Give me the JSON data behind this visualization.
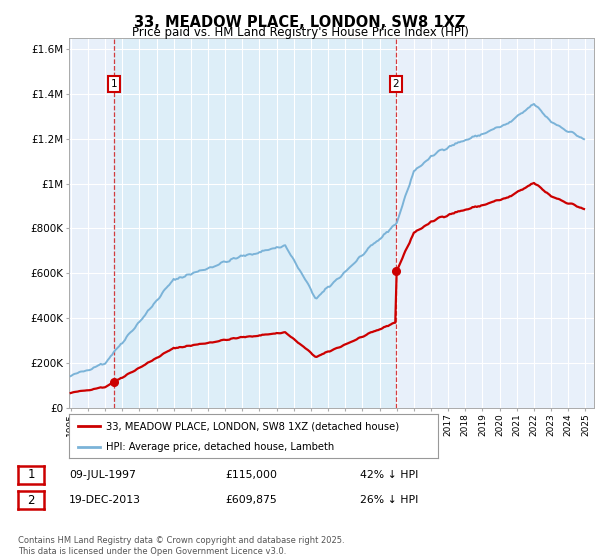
{
  "title": "33, MEADOW PLACE, LONDON, SW8 1XZ",
  "subtitle": "Price paid vs. HM Land Registry's House Price Index (HPI)",
  "red_label": "33, MEADOW PLACE, LONDON, SW8 1XZ (detached house)",
  "blue_label": "HPI: Average price, detached house, Lambeth",
  "annotation1_date": "09-JUL-1997",
  "annotation1_price": "£115,000",
  "annotation1_hpi": "42% ↓ HPI",
  "annotation2_date": "19-DEC-2013",
  "annotation2_price": "£609,875",
  "annotation2_hpi": "26% ↓ HPI",
  "purchase1_year": 1997.52,
  "purchase1_value": 115000,
  "purchase2_year": 2013.96,
  "purchase2_value": 609875,
  "copyright": "Contains HM Land Registry data © Crown copyright and database right 2025.\nThis data is licensed under the Open Government Licence v3.0.",
  "red_color": "#cc0000",
  "blue_color": "#7bb3d8",
  "bg_color": "#e8f0fa",
  "span_color": "#ddeaf7",
  "ylim_max": 1650000,
  "ylim_min": 0,
  "xlim_min": 1994.9,
  "xlim_max": 2025.5,
  "yticks": [
    0,
    200000,
    400000,
    600000,
    800000,
    1000000,
    1200000,
    1400000,
    1600000
  ],
  "ytick_labels": [
    "£0",
    "£200K",
    "£400K",
    "£600K",
    "£800K",
    "£1M",
    "£1.2M",
    "£1.4M",
    "£1.6M"
  ],
  "xtick_years": [
    1995,
    1996,
    1997,
    1998,
    1999,
    2000,
    2001,
    2002,
    2003,
    2004,
    2005,
    2006,
    2007,
    2008,
    2009,
    2010,
    2011,
    2012,
    2013,
    2014,
    2015,
    2016,
    2017,
    2018,
    2019,
    2020,
    2021,
    2022,
    2023,
    2024,
    2025
  ]
}
